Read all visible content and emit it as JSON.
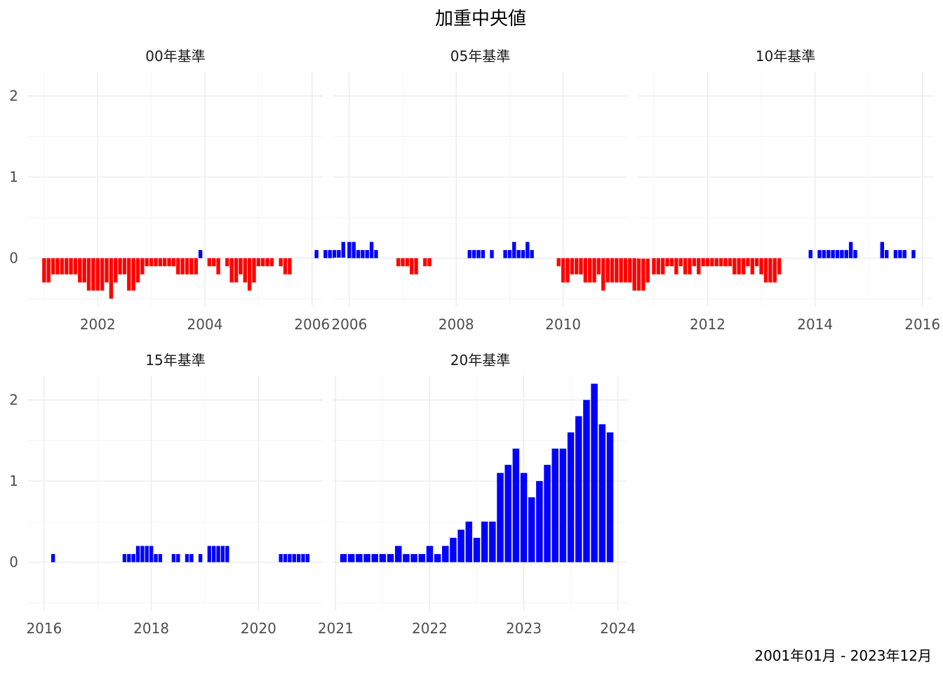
{
  "chart_data": {
    "type": "bar",
    "title": "加重中央値",
    "caption": "2001年01月 - 2023年12月",
    "y_ticks": [
      0,
      1,
      2
    ],
    "ylim": [
      -0.6,
      2.3
    ],
    "legend": "none",
    "grid": true,
    "colors": {
      "negative": "#ff0000",
      "positive": "#0000ff"
    },
    "panels": [
      {
        "name": "00年基準",
        "start": "2001-01",
        "x_ticks": [
          2002,
          2004,
          2006
        ],
        "xlim": [
          2000.7,
          2006.2
        ],
        "values": [
          -0.3,
          -0.3,
          -0.2,
          -0.2,
          -0.2,
          -0.2,
          -0.2,
          -0.2,
          -0.3,
          -0.3,
          -0.4,
          -0.4,
          -0.4,
          -0.4,
          -0.3,
          -0.5,
          -0.3,
          -0.2,
          -0.2,
          -0.4,
          -0.4,
          -0.3,
          -0.2,
          -0.1,
          -0.1,
          -0.1,
          -0.1,
          -0.1,
          -0.1,
          -0.1,
          -0.2,
          -0.2,
          -0.2,
          -0.2,
          -0.2,
          0.1,
          null,
          -0.1,
          -0.1,
          -0.2,
          null,
          -0.1,
          -0.3,
          -0.3,
          -0.2,
          -0.3,
          -0.4,
          -0.3,
          -0.1,
          -0.1,
          -0.1,
          -0.1,
          null,
          -0.1,
          -0.2,
          -0.2,
          null,
          null,
          null,
          null,
          null,
          0.1,
          null,
          0.1,
          0.1,
          0.1,
          0.1,
          0.2
        ]
      },
      {
        "name": "05年基準",
        "start": "2006-01",
        "x_ticks": [
          2006,
          2008,
          2010
        ],
        "xlim": [
          2005.7,
          2011.2
        ],
        "values": [
          0.2,
          0.2,
          0.1,
          0.1,
          0.1,
          0.2,
          0.1,
          null,
          null,
          null,
          null,
          -0.1,
          -0.1,
          -0.1,
          -0.2,
          -0.2,
          null,
          -0.1,
          -0.1,
          null,
          null,
          null,
          null,
          null,
          null,
          null,
          null,
          0.1,
          0.1,
          0.1,
          0.1,
          null,
          0.1,
          null,
          null,
          0.1,
          0.1,
          0.2,
          0.1,
          0.1,
          0.2,
          0.1,
          null,
          null,
          null,
          null,
          null,
          -0.1,
          -0.3,
          -0.3,
          -0.2,
          -0.2,
          -0.2,
          -0.3,
          -0.3,
          -0.3,
          -0.2,
          -0.4,
          -0.3,
          -0.3,
          -0.3,
          -0.3,
          -0.3,
          -0.3,
          -0.4,
          -0.4,
          -0.4,
          -0.3
        ]
      },
      {
        "name": "10年基準",
        "start": "2011-01",
        "x_ticks": [
          2012,
          2014,
          2016
        ],
        "xlim": [
          2010.7,
          2016.2
        ],
        "values": [
          -0.2,
          -0.2,
          -0.2,
          -0.1,
          -0.1,
          -0.2,
          -0.1,
          -0.2,
          -0.2,
          -0.1,
          -0.2,
          -0.1,
          -0.1,
          -0.1,
          -0.1,
          -0.1,
          -0.1,
          -0.1,
          -0.2,
          -0.2,
          -0.2,
          -0.1,
          -0.2,
          -0.1,
          -0.2,
          -0.3,
          -0.3,
          -0.3,
          -0.2,
          null,
          null,
          null,
          null,
          null,
          null,
          0.1,
          null,
          0.1,
          0.1,
          0.1,
          0.1,
          0.1,
          0.1,
          0.1,
          0.2,
          0.1,
          null,
          null,
          null,
          null,
          null,
          0.2,
          0.1,
          null,
          0.1,
          0.1,
          0.1,
          null,
          0.1,
          null,
          null,
          null,
          null,
          null,
          null,
          null
        ]
      },
      {
        "name": "15年基準",
        "start": "2016-01",
        "x_ticks": [
          2016,
          2018,
          2020
        ],
        "xlim": [
          2015.7,
          2021.2
        ],
        "values": [
          null,
          null,
          0.1,
          null,
          null,
          null,
          null,
          null,
          null,
          null,
          null,
          null,
          null,
          null,
          null,
          null,
          null,
          null,
          0.1,
          0.1,
          0.1,
          0.2,
          0.2,
          0.2,
          0.2,
          0.1,
          0.1,
          null,
          null,
          0.1,
          0.1,
          null,
          0.1,
          0.1,
          null,
          0.1,
          null,
          0.2,
          0.2,
          0.2,
          0.2,
          0.2,
          null,
          null,
          null,
          null,
          null,
          null,
          null,
          null,
          null,
          null,
          null,
          0.1,
          0.1,
          0.1,
          0.1,
          0.1,
          0.1,
          0.1
        ]
      },
      {
        "name": "20年基準",
        "start": "2021-01",
        "x_ticks": [
          2021,
          2022,
          2023,
          2024
        ],
        "xlim": [
          2020.975,
          2024.1
        ],
        "values": [
          null,
          0.1,
          0.1,
          0.1,
          0.1,
          0.1,
          0.1,
          0.1,
          0.2,
          0.1,
          0.1,
          0.1,
          0.2,
          0.1,
          0.2,
          0.3,
          0.4,
          0.5,
          0.3,
          0.5,
          0.5,
          1.1,
          1.2,
          1.4,
          1.1,
          0.8,
          1.0,
          1.2,
          1.4,
          1.4,
          1.6,
          1.8,
          2.0,
          2.2,
          1.7,
          1.6
        ]
      }
    ]
  }
}
